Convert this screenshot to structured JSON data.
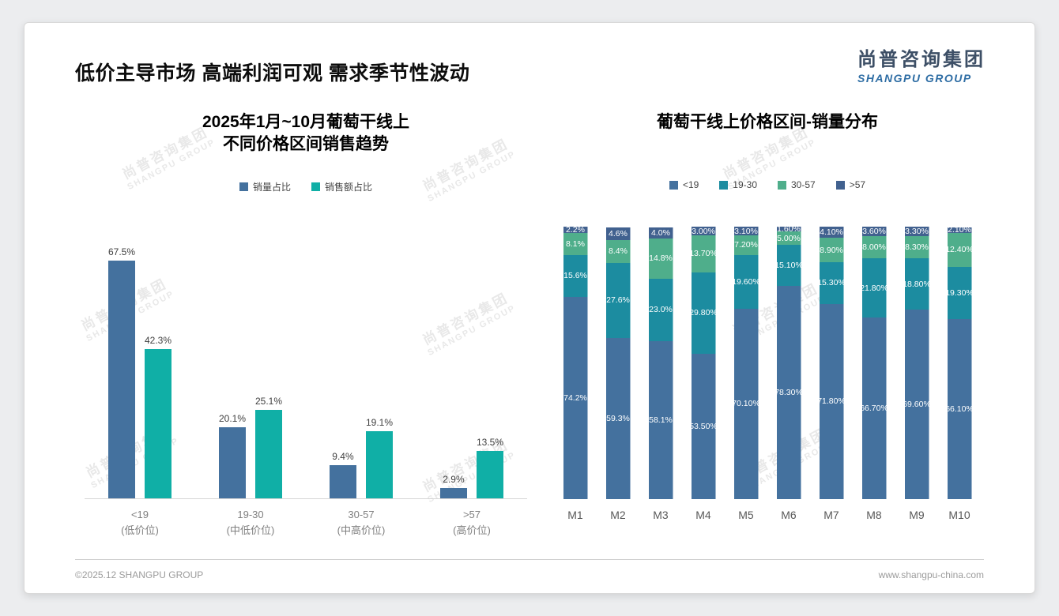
{
  "slide": {
    "title": "低价主导市场 高端利润可观 需求季节性波动",
    "logo": {
      "cn": "尚普咨询集团",
      "en": "SHANGPU GROUP"
    },
    "watermark": {
      "cn": "尚普咨询集团",
      "en": "SHANGPU GROUP"
    },
    "footer": {
      "left": "©2025.12 SHANGPU GROUP",
      "right": "www.shangpu-china.com"
    }
  },
  "chart_data": [
    {
      "type": "bar",
      "title": "2025年1月~10月葡萄干线上 不同价格区间销售趋势",
      "title_lines": [
        "2025年1月~10月葡萄干线上",
        "不同价格区间销售趋势"
      ],
      "categories": [
        "<19",
        "19-30",
        "30-57",
        ">57"
      ],
      "category_sublabels": [
        "(低价位)",
        "(中低价位)",
        "(中高价位)",
        "(高价位)"
      ],
      "series": [
        {
          "name": "销量占比",
          "color": "#44719E",
          "values": [
            67.5,
            20.1,
            9.4,
            2.9
          ],
          "labels": [
            "67.5%",
            "20.1%",
            "9.4%",
            "2.9%"
          ]
        },
        {
          "name": "销售额占比",
          "color": "#10AFA6",
          "values": [
            42.3,
            25.1,
            19.1,
            13.5
          ],
          "labels": [
            "42.3%",
            "25.1%",
            "19.1%",
            "13.5%"
          ]
        }
      ],
      "ylim": [
        0,
        70
      ],
      "grid": false,
      "legend_position": "top"
    },
    {
      "type": "stacked-bar",
      "title": "葡萄干线上价格区间-销量分布",
      "categories": [
        "M1",
        "M2",
        "M3",
        "M4",
        "M5",
        "M6",
        "M7",
        "M8",
        "M9",
        "M10"
      ],
      "series": [
        {
          "name": "<19",
          "color": "#44719E",
          "values": [
            74.2,
            59.3,
            58.1,
            53.5,
            70.1,
            78.3,
            71.8,
            66.7,
            69.6,
            66.1
          ],
          "labels": [
            "74.2%",
            "59.3%",
            "58.1%",
            "53.50%",
            "70.10%",
            "78.30%",
            "71.80%",
            "66.70%",
            "69.60%",
            "66.10%"
          ]
        },
        {
          "name": "19-30",
          "color": "#1C8CA0",
          "values": [
            15.6,
            27.6,
            23.0,
            29.8,
            19.6,
            15.1,
            15.3,
            21.8,
            18.8,
            19.3
          ],
          "labels": [
            "15.6%",
            "27.6%",
            "23.0%",
            "29.80%",
            "19.60%",
            "15.10%",
            "15.30%",
            "21.80%",
            "18.80%",
            "19.30%"
          ]
        },
        {
          "name": "30-57",
          "color": "#4FAE8B",
          "values": [
            8.1,
            8.4,
            14.8,
            13.7,
            7.2,
            5.0,
            8.9,
            8.0,
            8.3,
            12.4
          ],
          "labels": [
            "8.1%",
            "8.4%",
            "14.8%",
            "13.70%",
            "7.20%",
            "5.00%",
            "8.90%",
            "8.00%",
            "8.30%",
            "12.40%"
          ]
        },
        {
          "name": ">57",
          "color": "#41618F",
          "values": [
            2.2,
            4.6,
            4.0,
            3.0,
            3.1,
            1.6,
            4.1,
            3.6,
            3.3,
            2.1
          ],
          "labels": [
            "2.2%",
            "4.6%",
            "4.0%",
            "3.00%",
            "3.10%",
            "1.60%",
            "4.10%",
            "3.60%",
            "3.30%",
            "2.10%"
          ]
        }
      ],
      "ylim": [
        0,
        100
      ],
      "grid": false,
      "legend_position": "top"
    }
  ]
}
